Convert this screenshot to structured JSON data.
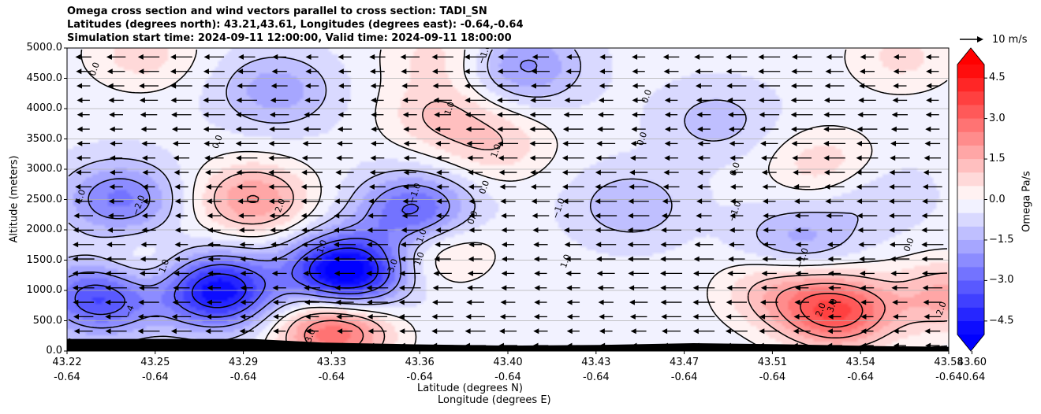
{
  "chart_data": {
    "type": "heatmap",
    "title_lines": [
      "Omega cross section and wind vectors parallel to cross section: TADI_SN",
      "Latitudes (degrees north): 43.21,43.61, Longitudes (degrees east): -0.64,-0.64",
      "Simulation start time: 2024-09-11 12:00:00, Valid time: 2024-09-11 18:00:00"
    ],
    "xlabel_line1": "Latitude (degrees N)",
    "xlabel_line2": "Longitude (degrees E)",
    "ylabel": "Altitude (meters)",
    "xlim": [
      43.22,
      43.6
    ],
    "ylim": [
      0,
      5000
    ],
    "x_ticks": [
      {
        "lat": "43.22",
        "lon": "-0.64",
        "value": 43.22
      },
      {
        "lat": "43.25",
        "lon": "-0.64",
        "value": 43.258
      },
      {
        "lat": "43.29",
        "lon": "-0.64",
        "value": 43.296
      },
      {
        "lat": "43.33",
        "lon": "-0.64",
        "value": 43.334
      },
      {
        "lat": "43.36",
        "lon": "-0.64",
        "value": 43.372
      },
      {
        "lat": "43.40",
        "lon": "-0.64",
        "value": 43.41
      },
      {
        "lat": "43.43",
        "lon": "-0.64",
        "value": 43.448
      },
      {
        "lat": "43.47",
        "lon": "-0.64",
        "value": 43.486
      },
      {
        "lat": "43.51",
        "lon": "-0.64",
        "value": 43.524
      },
      {
        "lat": "43.54",
        "lon": "-0.64",
        "value": 43.562
      },
      {
        "lat": "43.58",
        "lon": "-0.64",
        "value": 43.6
      },
      {
        "lat": "43.60",
        "lon": "-0.64",
        "value": 43.61
      }
    ],
    "y_ticks": [
      "0.0",
      "500.0",
      "1000.0",
      "1500.0",
      "2000.0",
      "2500.0",
      "3000.0",
      "3500.0",
      "4000.0",
      "4500.0",
      "5000.0"
    ],
    "y_tick_values": [
      0,
      500,
      1000,
      1500,
      2000,
      2500,
      3000,
      3500,
      4000,
      4500,
      5000
    ],
    "grid": "horizontal",
    "colorbar": {
      "label": "Omega Pa/s",
      "ticks": [
        "4.5",
        "3.0",
        "1.5",
        "0.0",
        "−1.5",
        "−3.0",
        "−4.5"
      ],
      "tick_values": [
        4.5,
        3.0,
        1.5,
        0.0,
        -1.5,
        -3.0,
        -4.5
      ],
      "range": [
        -5.0,
        5.0
      ],
      "extend": "both",
      "colormap": "bwr",
      "colors": {
        "negative": "#0000ff",
        "zero": "#ffffff",
        "positive": "#ff0000"
      }
    },
    "quiver_key": {
      "label": "10 m/s",
      "value": 10
    },
    "wind_field": {
      "direction": "toward decreasing latitude",
      "typical_speed_ms": 10
    },
    "terrain": {
      "x": [
        43.22,
        43.3,
        43.33,
        43.37,
        43.41,
        43.45,
        43.49,
        43.53,
        43.57,
        43.6
      ],
      "y": [
        200,
        200,
        140,
        110,
        90,
        100,
        130,
        110,
        80,
        70
      ]
    },
    "contour_labels": [
      "0.0",
      "0.0",
      "0.0",
      "0.0",
      "0.0",
      "0.0",
      "0.0",
      "0.0",
      "1.0",
      "1.0",
      "1.0",
      "1.0",
      "1.0",
      "1.0",
      "1.0",
      "1.0",
      "2.0",
      "2.0",
      "2.0",
      "3.0",
      "3.0",
      "−1.0",
      "−1.0",
      "−1.0",
      "−1.0",
      "−1.0",
      "−2.0",
      "−3.0",
      "−4"
    ],
    "omega_centers": [
      {
        "lat": 43.3,
        "alt": 2500,
        "value": 2.4
      },
      {
        "lat": 43.25,
        "alt": 1300,
        "value": 1.2
      },
      {
        "lat": 43.335,
        "alt": 350,
        "value": 3.5
      },
      {
        "lat": 43.38,
        "alt": 3900,
        "value": 1.3
      },
      {
        "lat": 43.405,
        "alt": 3400,
        "value": 1.2
      },
      {
        "lat": 43.38,
        "alt": 1700,
        "value": 1.3
      },
      {
        "lat": 43.252,
        "alt": 4900,
        "value": 1.1
      },
      {
        "lat": 43.38,
        "alt": 4900,
        "value": 1.0
      },
      {
        "lat": 43.552,
        "alt": 650,
        "value": 3.8
      },
      {
        "lat": 43.525,
        "alt": 1000,
        "value": 1.5
      },
      {
        "lat": 43.547,
        "alt": 3050,
        "value": 1.3
      },
      {
        "lat": 43.6,
        "alt": 900,
        "value": 2.0
      },
      {
        "lat": 43.58,
        "alt": 4850,
        "value": 1.0
      },
      {
        "lat": 43.34,
        "alt": 1300,
        "value": -5.5
      },
      {
        "lat": 43.285,
        "alt": 1000,
        "value": -4.6
      },
      {
        "lat": 43.235,
        "alt": 900,
        "value": -3.6
      },
      {
        "lat": 43.37,
        "alt": 2300,
        "value": -3.0
      },
      {
        "lat": 43.243,
        "alt": 2500,
        "value": -2.3
      },
      {
        "lat": 43.31,
        "alt": 4300,
        "value": -1.5
      },
      {
        "lat": 43.417,
        "alt": 4700,
        "value": -1.8
      },
      {
        "lat": 43.535,
        "alt": 1800,
        "value": -1.4
      },
      {
        "lat": 43.463,
        "alt": 2400,
        "value": -1.1
      },
      {
        "lat": 43.5,
        "alt": 3800,
        "value": -0.9
      },
      {
        "lat": 43.565,
        "alt": 2600,
        "value": -0.8
      }
    ]
  }
}
